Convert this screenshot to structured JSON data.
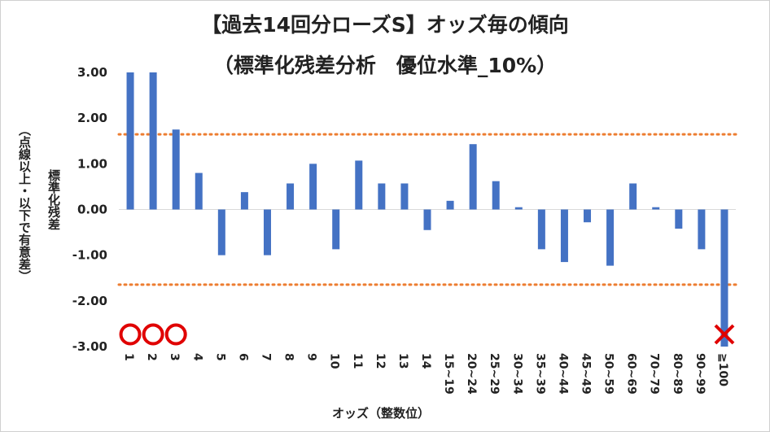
{
  "title": "【過去14回分ローズS】オッズ毎の傾向",
  "subtitle": "（標準化残差分析　優位水準_10%）",
  "ylabel_main": "標準化残差",
  "ylabel_sub": "（点線以上・以下で有意差）",
  "xlabel": "オッズ（整数位）",
  "colors": {
    "bar": "#4472c4",
    "threshold": "#ed7d31",
    "circle": "#e00000",
    "cross": "#e00000"
  },
  "chart_data": {
    "type": "bar",
    "title": "【過去14回分ローズS】オッズ毎の傾向",
    "subtitle": "（標準化残差分析　優位水準_10%）",
    "xlabel": "オッズ（整数位）",
    "ylabel": "標準化残差（点線以上・以下で有意差）",
    "categories": [
      "1",
      "2",
      "3",
      "4",
      "5",
      "6",
      "7",
      "8",
      "9",
      "10",
      "11",
      "12",
      "13",
      "14",
      "15~19",
      "20~24",
      "25~29",
      "30~34",
      "35~39",
      "40~44",
      "45~49",
      "50~59",
      "60~69",
      "70~79",
      "80~89",
      "90~99",
      "≧100"
    ],
    "values": [
      3.0,
      3.0,
      1.75,
      0.8,
      -1.0,
      0.38,
      -1.0,
      0.57,
      1.0,
      -0.87,
      1.07,
      0.57,
      0.57,
      -0.45,
      0.19,
      1.43,
      0.62,
      0.05,
      -0.87,
      -1.15,
      -0.28,
      -1.23,
      0.57,
      0.05,
      -0.42,
      -0.87,
      -3.0
    ],
    "ylim": [
      -3.0,
      3.0
    ],
    "yticks": [
      "3.00",
      "2.00",
      "1.00",
      "0.00",
      "-1.00",
      "-2.00",
      "-3.00"
    ],
    "ytick_values": [
      3,
      2,
      1,
      0,
      -1,
      -2,
      -3
    ],
    "threshold_lines": [
      1.645,
      -1.645
    ],
    "markers": [
      {
        "category": "1",
        "symbol": "circle"
      },
      {
        "category": "2",
        "symbol": "circle"
      },
      {
        "category": "3",
        "symbol": "circle"
      },
      {
        "category": "≧100",
        "symbol": "cross"
      }
    ],
    "grid": false,
    "legend": "none"
  }
}
